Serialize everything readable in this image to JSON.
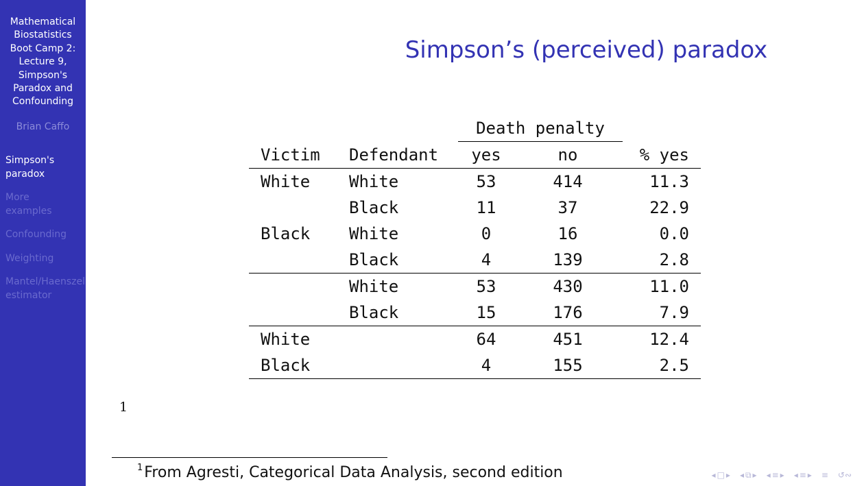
{
  "sidebar": {
    "title_lines": [
      "Mathematical",
      "Biostatistics",
      "Boot Camp 2:",
      "Lecture 9,",
      "Simpson's",
      "Paradox and",
      "Confounding"
    ],
    "author": "Brian Caffo",
    "sections": [
      {
        "lines": [
          "Simpson's",
          "paradox"
        ],
        "active": true
      },
      {
        "lines": [
          "More",
          "examples"
        ],
        "active": false
      },
      {
        "lines": [
          "Confounding"
        ],
        "active": false
      },
      {
        "lines": [
          "Weighting"
        ],
        "active": false
      },
      {
        "lines": [
          "Mantel/Haenszel",
          "estimator"
        ],
        "active": false
      }
    ]
  },
  "slide": {
    "title": "Simpson’s (perceived) paradox",
    "table": {
      "group_header": "Death penalty",
      "columns": [
        "Victim",
        "Defendant",
        "yes",
        "no",
        "% yes"
      ],
      "rows": [
        {
          "victim": "White",
          "defendant": "White",
          "yes": "53",
          "no": "414",
          "pct": "11.3"
        },
        {
          "victim": "",
          "defendant": "Black",
          "yes": "11",
          "no": "37",
          "pct": "22.9"
        },
        {
          "victim": "Black",
          "defendant": "White",
          "yes": "0",
          "no": "16",
          "pct": "0.0"
        },
        {
          "victim": "",
          "defendant": "Black",
          "yes": "4",
          "no": "139",
          "pct": "2.8"
        },
        {
          "victim": "",
          "defendant": "White",
          "yes": "53",
          "no": "430",
          "pct": "11.0"
        },
        {
          "victim": "",
          "defendant": "Black",
          "yes": "15",
          "no": "176",
          "pct": "7.9"
        },
        {
          "victim": "White",
          "defendant": "",
          "yes": "64",
          "no": "451",
          "pct": "12.4"
        },
        {
          "victim": "Black",
          "defendant": "",
          "yes": "4",
          "no": "155",
          "pct": "2.5"
        }
      ]
    },
    "footnote_marker": "1",
    "footnote_number": "1",
    "footnote_text": "From Agresti, Categorical Data Analysis, second edition"
  },
  "navigation": {
    "icons": [
      "nav-frame-icon",
      "nav-subsection-icon",
      "nav-section-icon",
      "nav-doc-icon",
      "nav-align-icon",
      "nav-search-icon"
    ],
    "symbols": {
      "left": "◂",
      "right": "▸",
      "frame": "□",
      "sub": "⧉",
      "sec": "≡",
      "align": "≡",
      "search": "↺∾"
    }
  }
}
